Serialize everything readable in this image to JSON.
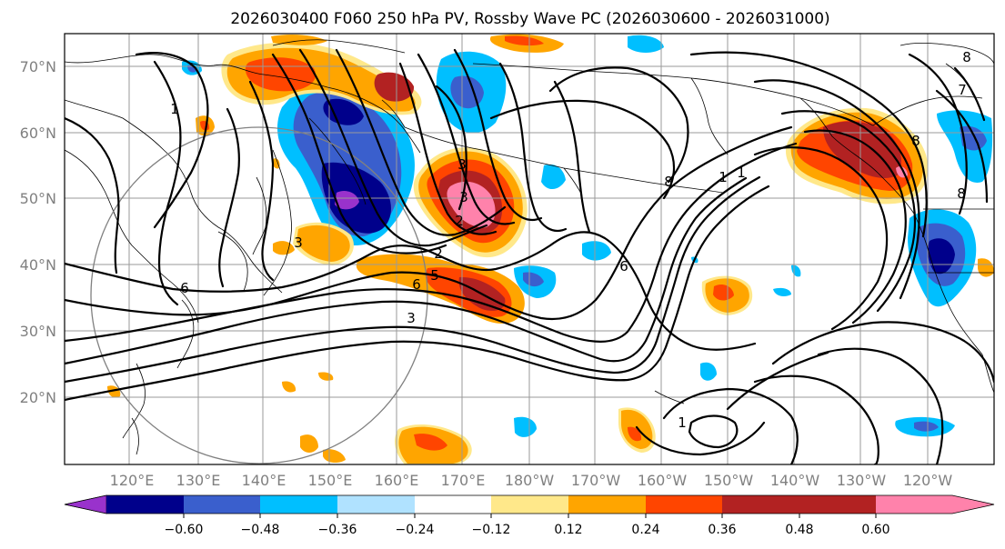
{
  "title": "2026030400 F060 250 hPa PV, Rossby Wave PC (2026030600 - 2026031000)",
  "lat_labels": [
    "70°N",
    "60°N",
    "50°N",
    "40°N",
    "30°N",
    "20°N"
  ],
  "lon_labels": [
    "120°E",
    "130°E",
    "140°E",
    "150°E",
    "160°E",
    "170°E",
    "180°W",
    "170°W",
    "160°W",
    "150°W",
    "140°W",
    "130°W",
    "120°W"
  ],
  "colorbar": {
    "ticks": [
      "−0.60",
      "−0.48",
      "−0.36",
      "−0.24",
      "−0.12",
      "0.12",
      "0.24",
      "0.36",
      "0.48",
      "0.60"
    ],
    "colors": [
      "#9932CC",
      "#00008B",
      "#3A5FCD",
      "#00BFFF",
      "#B0E2FF",
      "#FFFFFF",
      "#FFE88A",
      "#FFA500",
      "#FF4500",
      "#B22222",
      "#FF82AB"
    ]
  },
  "contour_labels": [
    "1",
    "1",
    "2",
    "2",
    "3",
    "3",
    "3",
    "3",
    "5",
    "6",
    "6",
    "6",
    "7",
    "8",
    "8",
    "8",
    "8",
    "1",
    "1"
  ]
}
